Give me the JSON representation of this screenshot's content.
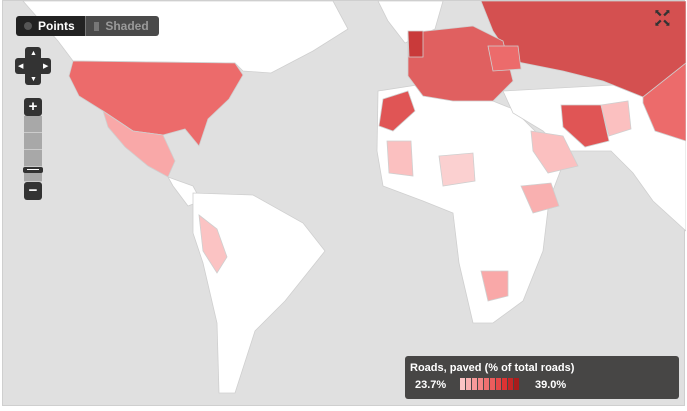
{
  "toggle": {
    "points_label": "Points",
    "shaded_label": "Shaded",
    "active": "Points"
  },
  "legend": {
    "title": "Roads, paved (% of total roads)",
    "min": "23.7%",
    "max": "39.0%",
    "colors": [
      "#fcc5c5",
      "#f9b0b0",
      "#f79a9a",
      "#f48585",
      "#ef7070",
      "#eb5d5d",
      "#e44848",
      "#dd3333",
      "#c42626",
      "#a81c1c"
    ]
  },
  "colors": {
    "sea": "#e0e0e0",
    "land": "#ffffff",
    "accent": "#e05555"
  },
  "icons": {
    "pan": "pan-arrows-icon",
    "zoom_in": "plus-icon",
    "zoom_out": "minus-icon",
    "fullscreen": "fullscreen-icon"
  }
}
